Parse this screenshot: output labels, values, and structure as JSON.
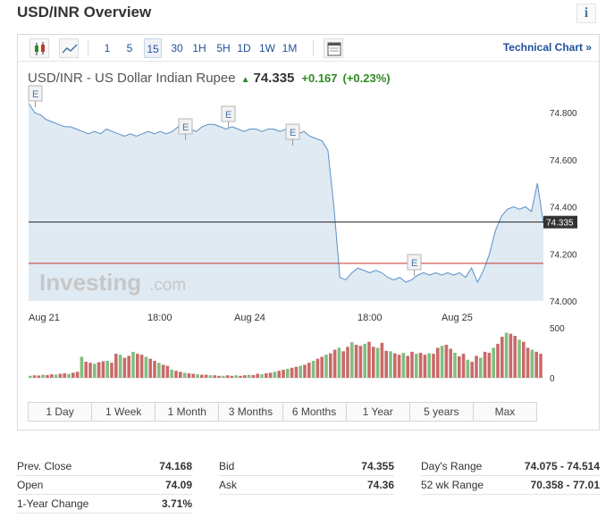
{
  "header": {
    "title": "USD/INR Overview",
    "info_icon": "i"
  },
  "toolbar": {
    "intervals": [
      "1",
      "5",
      "15",
      "30",
      "1H",
      "5H",
      "1D",
      "1W",
      "1M"
    ],
    "active_interval": "15",
    "technical_link": "Technical Chart »"
  },
  "quote": {
    "name": "USD/INR - US Dollar Indian Rupee",
    "direction_arrow": "▲",
    "price": "74.335",
    "change": "+0.167",
    "change_pct": "(+0.23%)",
    "up_color": "#2e8b22"
  },
  "chart_data": {
    "type": "area",
    "x_tick_labels": [
      "Aug 21",
      "18:00",
      "Aug 24",
      "18:00",
      "Aug 25"
    ],
    "y_tick_labels": [
      "74.800",
      "74.600",
      "74.400",
      "74.200",
      "74.000"
    ],
    "ylim": [
      74.0,
      74.88
    ],
    "last_price_label": "74.335",
    "reference_line": 74.16,
    "event_markers": [
      "E",
      "E",
      "E",
      "E",
      "E"
    ],
    "price_values": [
      74.84,
      74.8,
      74.79,
      74.77,
      74.76,
      74.75,
      74.74,
      74.74,
      74.73,
      74.72,
      74.71,
      74.72,
      74.71,
      74.73,
      74.72,
      74.71,
      74.7,
      74.71,
      74.7,
      74.71,
      74.72,
      74.71,
      74.72,
      74.71,
      74.72,
      74.74,
      74.75,
      74.73,
      74.72,
      74.74,
      74.75,
      74.75,
      74.74,
      74.73,
      74.74,
      74.73,
      74.72,
      74.73,
      74.73,
      74.72,
      74.73,
      74.73,
      74.72,
      74.73,
      74.72,
      74.71,
      74.72,
      74.7,
      74.69,
      74.68,
      74.64,
      74.4,
      74.1,
      74.09,
      74.12,
      74.14,
      74.13,
      74.12,
      74.13,
      74.12,
      74.1,
      74.09,
      74.1,
      74.08,
      74.09,
      74.11,
      74.12,
      74.11,
      74.12,
      74.11,
      74.12,
      74.11,
      74.12,
      74.1,
      74.14,
      74.08,
      74.13,
      74.2,
      74.3,
      74.36,
      74.39,
      74.4,
      74.39,
      74.4,
      74.38,
      74.5,
      74.33
    ],
    "volume_ylim": [
      0,
      500
    ],
    "volume_tick_labels": [
      "500",
      "0"
    ],
    "volume_values": [
      20,
      25,
      22,
      30,
      28,
      35,
      32,
      40,
      45,
      38,
      50,
      60,
      210,
      160,
      150,
      140,
      155,
      165,
      170,
      150,
      240,
      230,
      200,
      220,
      260,
      240,
      230,
      210,
      190,
      170,
      150,
      130,
      120,
      80,
      70,
      60,
      50,
      45,
      40,
      35,
      30,
      30,
      25,
      25,
      20,
      20,
      25,
      20,
      25,
      20,
      25,
      30,
      28,
      40,
      35,
      45,
      50,
      60,
      70,
      80,
      90,
      100,
      110,
      120,
      130,
      150,
      170,
      190,
      210,
      230,
      245,
      280,
      300,
      265,
      310,
      355,
      330,
      320,
      340,
      360,
      310,
      300,
      350,
      270,
      265,
      245,
      230,
      250,
      220,
      260,
      240,
      250,
      230,
      245,
      240,
      300,
      320,
      330,
      290,
      250,
      215,
      240,
      180,
      160,
      220,
      200,
      260,
      250,
      300,
      340,
      410,
      450,
      440,
      420,
      380,
      360,
      300,
      280,
      260,
      240
    ],
    "volume_colors": {
      "up": "#7fbf7f",
      "down": "#c96a6a"
    }
  },
  "range_buttons": [
    "1 Day",
    "1 Week",
    "1 Month",
    "3 Months",
    "6 Months",
    "1 Year",
    "5 years",
    "Max"
  ],
  "stats": [
    {
      "label": "Prev. Close",
      "value": "74.168"
    },
    {
      "label": "Bid",
      "value": "74.355"
    },
    {
      "label": "Day's Range",
      "value": "74.075 - 74.514"
    },
    {
      "label": "Open",
      "value": "74.09"
    },
    {
      "label": "Ask",
      "value": "74.36"
    },
    {
      "label": "52 wk Range",
      "value": "70.358 - 77.01"
    },
    {
      "label": "1-Year Change",
      "value": "3.71%"
    }
  ],
  "watermark": {
    "brand": "Investing",
    "suffix": ".com"
  },
  "colors": {
    "accent": "#1f4e9b",
    "area_fill": "#dfeaf3",
    "area_line": "#5b8fc7",
    "reference_line": "#c0392b"
  }
}
